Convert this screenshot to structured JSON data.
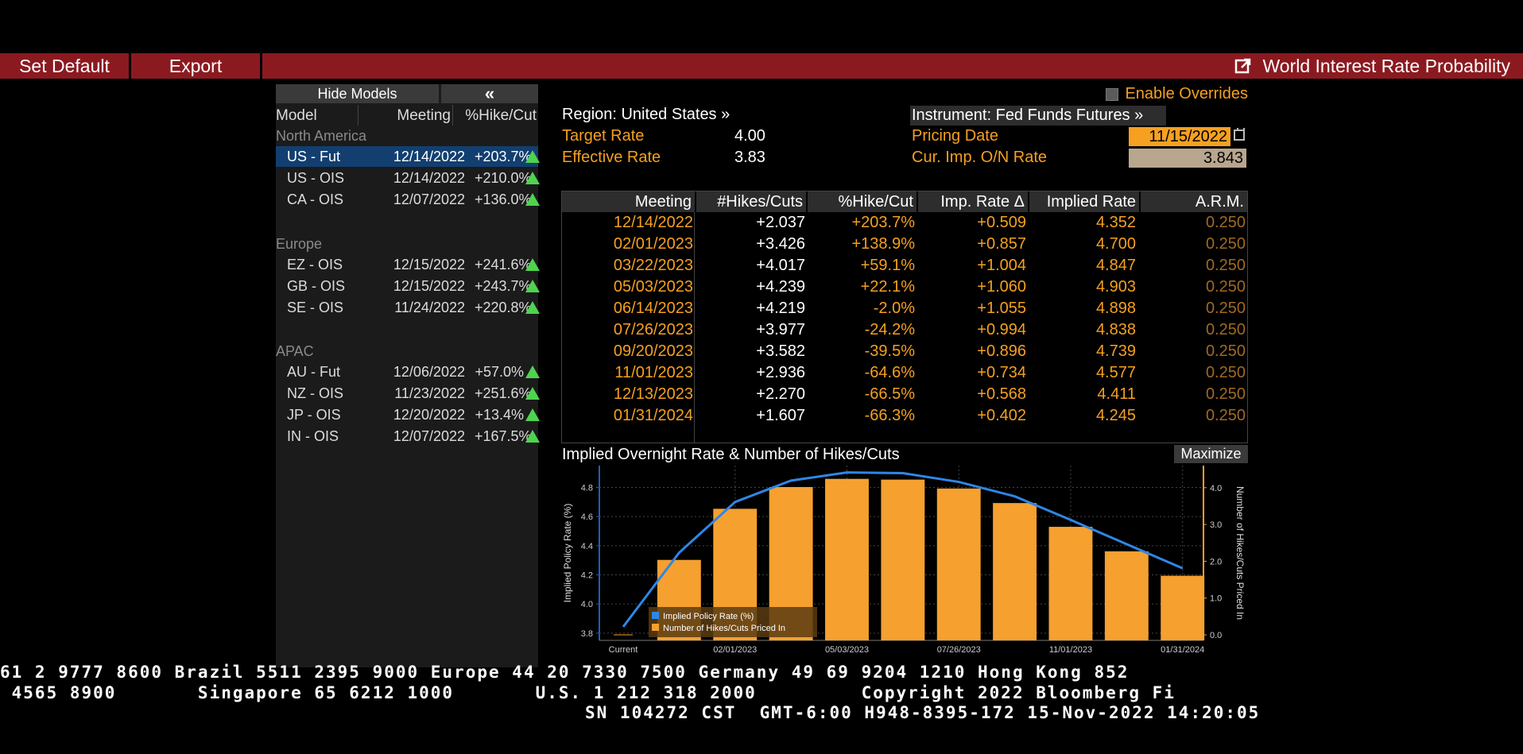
{
  "toolbar": {
    "set_default": "Set Default",
    "export": "Export",
    "title": "World Interest Rate Probability"
  },
  "models_panel": {
    "hide_label": "Hide Models",
    "collapse_label": "«",
    "columns": {
      "model": "Model",
      "meeting": "Meeting",
      "pct": "%Hike/Cut"
    },
    "groups": [
      {
        "name": "North America",
        "rows": [
          {
            "name": "US - Fut",
            "date": "12/14/2022",
            "pct": "+203.7%",
            "selected": true
          },
          {
            "name": "US - OIS",
            "date": "12/14/2022",
            "pct": "+210.0%"
          },
          {
            "name": "CA - OIS",
            "date": "12/07/2022",
            "pct": "+136.0%"
          }
        ]
      },
      {
        "name": "Europe",
        "rows": [
          {
            "name": "EZ - OIS",
            "date": "12/15/2022",
            "pct": "+241.6%"
          },
          {
            "name": "GB - OIS",
            "date": "12/15/2022",
            "pct": "+243.7%"
          },
          {
            "name": "SE - OIS",
            "date": "11/24/2022",
            "pct": "+220.8%"
          }
        ]
      },
      {
        "name": "APAC",
        "rows": [
          {
            "name": "AU - Fut",
            "date": "12/06/2022",
            "pct": "+57.0%"
          },
          {
            "name": "NZ - OIS",
            "date": "11/23/2022",
            "pct": "+251.6%"
          },
          {
            "name": "JP - OIS",
            "date": "12/20/2022",
            "pct": "+13.4%"
          },
          {
            "name": "IN - OIS",
            "date": "12/07/2022",
            "pct": "+167.5%"
          }
        ]
      }
    ]
  },
  "info": {
    "enable_overrides": "Enable Overrides",
    "region": "Region: United States »",
    "target_rate_label": "Target Rate",
    "target_rate": "4.00",
    "effective_rate_label": "Effective Rate",
    "effective_rate": "3.83",
    "instrument": "Instrument: Fed Funds Futures »",
    "pricing_date_label": "Pricing Date",
    "pricing_date": "11/15/2022",
    "cur_imp_label": "Cur. Imp. O/N Rate",
    "cur_imp": "3.843"
  },
  "table": {
    "headers": [
      "Meeting",
      "#Hikes/Cuts",
      "%Hike/Cut",
      "Imp. Rate Δ",
      "Implied Rate",
      "A.R.M."
    ],
    "rows": [
      [
        "12/14/2022",
        "+2.037",
        "+203.7%",
        "+0.509",
        "4.352",
        "0.250"
      ],
      [
        "02/01/2023",
        "+3.426",
        "+138.9%",
        "+0.857",
        "4.700",
        "0.250"
      ],
      [
        "03/22/2023",
        "+4.017",
        "+59.1%",
        "+1.004",
        "4.847",
        "0.250"
      ],
      [
        "05/03/2023",
        "+4.239",
        "+22.1%",
        "+1.060",
        "4.903",
        "0.250"
      ],
      [
        "06/14/2023",
        "+4.219",
        "-2.0%",
        "+1.055",
        "4.898",
        "0.250"
      ],
      [
        "07/26/2023",
        "+3.977",
        "-24.2%",
        "+0.994",
        "4.838",
        "0.250"
      ],
      [
        "09/20/2023",
        "+3.582",
        "-39.5%",
        "+0.896",
        "4.739",
        "0.250"
      ],
      [
        "11/01/2023",
        "+2.936",
        "-64.6%",
        "+0.734",
        "4.577",
        "0.250"
      ],
      [
        "12/13/2023",
        "+2.270",
        "-66.5%",
        "+0.568",
        "4.411",
        "0.250"
      ],
      [
        "01/31/2024",
        "+1.607",
        "-66.3%",
        "+0.402",
        "4.245",
        "0.250"
      ]
    ]
  },
  "chart_panel": {
    "title": "Implied Overnight Rate & Number of Hikes/Cuts",
    "maximize": "Maximize"
  },
  "chart_data": {
    "type": "bar",
    "categories": [
      "Current",
      "12/14/2022",
      "02/01/2023",
      "03/22/2023",
      "05/03/2023",
      "06/14/2023",
      "07/26/2023",
      "09/20/2023",
      "11/01/2023",
      "12/13/2023",
      "01/31/2024"
    ],
    "x_tick_labels": [
      "Current",
      "02/01/2023",
      "05/03/2023",
      "07/26/2023",
      "11/01/2023",
      "01/31/2024"
    ],
    "series": [
      {
        "name": "Implied Policy Rate (%)",
        "type": "line",
        "axis": "left",
        "color": "#2f86e6",
        "values": [
          3.843,
          4.352,
          4.7,
          4.847,
          4.903,
          4.898,
          4.838,
          4.739,
          4.577,
          4.411,
          4.245
        ]
      },
      {
        "name": "Number of Hikes/Cuts Priced In",
        "type": "bar",
        "axis": "right",
        "color": "#f5a02f",
        "values": [
          0,
          2.037,
          3.426,
          4.017,
          4.239,
          4.219,
          3.977,
          3.582,
          2.936,
          2.27,
          1.607
        ]
      }
    ],
    "ylabel": "Implied Policy Rate (%)",
    "y2label": "Number of Hikes/Cuts Priced In",
    "ylim": [
      3.75,
      4.95
    ],
    "yticks": [
      "4.8",
      "4.6",
      "4.4",
      "4.2",
      "4.0",
      "3.8"
    ],
    "y2lim": [
      -0.15,
      4.6
    ],
    "y2ticks": [
      "4.0",
      "3.0",
      "2.0",
      "1.0",
      "0.0"
    ],
    "grid": true,
    "legend_position": "bottom-left"
  },
  "ticker": {
    "line1": "61 2 9777 8600 Brazil 5511 2395 9000 Europe 44 20 7330 7500 Germany 49 69 9204 1210 Hong Kong 852",
    "line2": " 4565 8900       Singapore 65 6212 1000       U.S. 1 212 318 2000         Copyright 2022 Bloomberg Fi",
    "line3": "SN 104272 CST  GMT-6:00 H948-8395-172 15-Nov-2022 14:20:05"
  }
}
